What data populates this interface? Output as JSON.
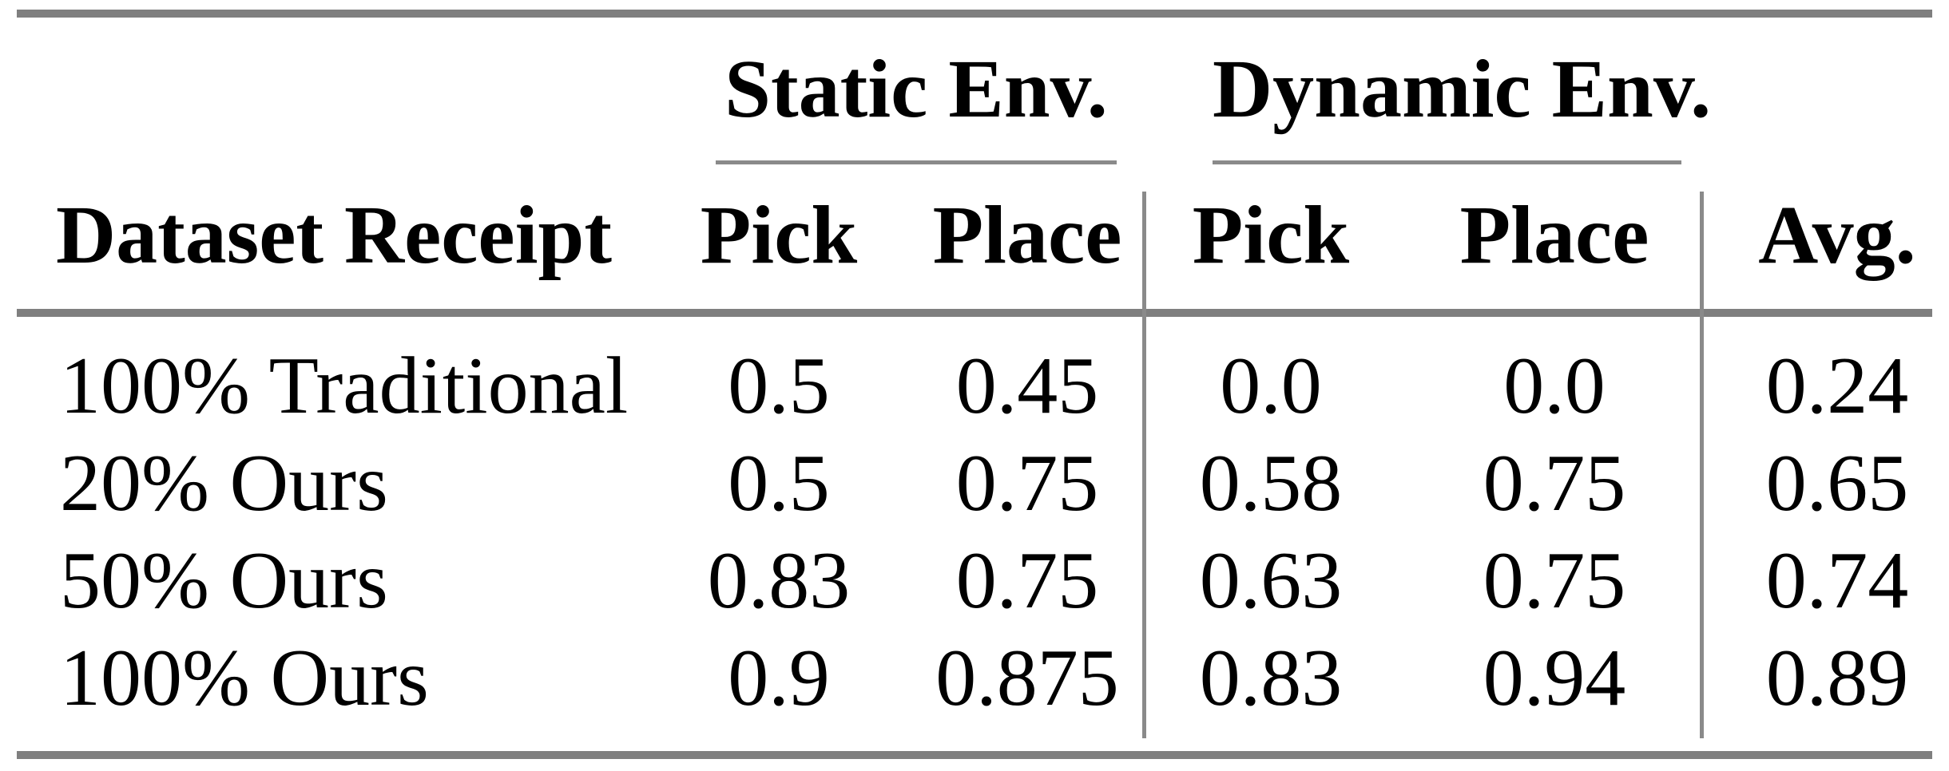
{
  "table": {
    "group_header": {
      "static": "Static Env.",
      "dynamic": "Dynamic Env."
    },
    "columns": {
      "row_label": "Dataset Receipt",
      "static_pick": "Pick",
      "static_place": "Place",
      "dynamic_pick": "Pick",
      "dynamic_place": "Place",
      "avg": "Avg."
    },
    "rows": [
      {
        "label": "100% Traditional",
        "static_pick": "0.5",
        "static_place": "0.45",
        "dynamic_pick": "0.0",
        "dynamic_place": "0.0",
        "avg": "0.24"
      },
      {
        "label": "20% Ours",
        "static_pick": "0.5",
        "static_place": "0.75",
        "dynamic_pick": "0.58",
        "dynamic_place": "0.75",
        "avg": "0.65"
      },
      {
        "label": "50% Ours",
        "static_pick": "0.83",
        "static_place": "0.75",
        "dynamic_pick": "0.63",
        "dynamic_place": "0.75",
        "avg": "0.74"
      },
      {
        "label": "100% Ours",
        "static_pick": "0.9",
        "static_place": "0.875",
        "dynamic_pick": "0.83",
        "dynamic_place": "0.94",
        "avg": "0.89"
      }
    ]
  },
  "colors": {
    "page_bg": "#ffffff",
    "text": "#000000",
    "rule_heavy": "#7f7f7f",
    "rule_light": "#8a8a8a"
  }
}
